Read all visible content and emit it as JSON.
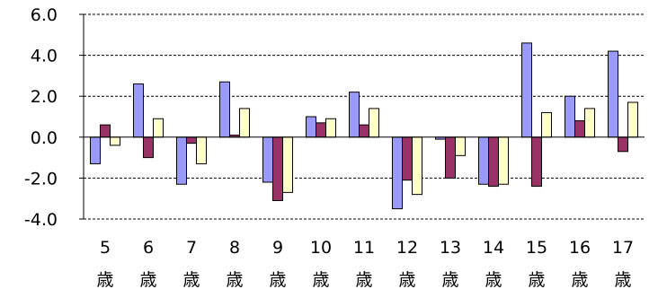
{
  "chart_data": {
    "type": "bar",
    "title": "",
    "xlabel": "",
    "ylabel": "",
    "ylim": [
      -4.0,
      6.0
    ],
    "yticks": [
      "6.0",
      "4.0",
      "2.0",
      "0.0",
      "-2.0",
      "-4.0"
    ],
    "grid": true,
    "legend": "none",
    "categories": [
      {
        "num": "5",
        "unit": "歳"
      },
      {
        "num": "6",
        "unit": "歳"
      },
      {
        "num": "7",
        "unit": "歳"
      },
      {
        "num": "8",
        "unit": "歳"
      },
      {
        "num": "9",
        "unit": "歳"
      },
      {
        "num": "10",
        "unit": "歳"
      },
      {
        "num": "11",
        "unit": "歳"
      },
      {
        "num": "12",
        "unit": "歳"
      },
      {
        "num": "13",
        "unit": "歳"
      },
      {
        "num": "14",
        "unit": "歳"
      },
      {
        "num": "15",
        "unit": "歳"
      },
      {
        "num": "16",
        "unit": "歳"
      },
      {
        "num": "17",
        "unit": "歳"
      }
    ],
    "series": [
      {
        "color": "#9999FF",
        "values": [
          -1.3,
          2.6,
          -2.3,
          2.7,
          -2.2,
          1.0,
          2.2,
          -3.5,
          -0.1,
          -2.3,
          4.6,
          2.0,
          4.2
        ]
      },
      {
        "color": "#993366",
        "values": [
          0.6,
          -1.0,
          -0.3,
          0.1,
          -3.1,
          0.7,
          0.6,
          -2.1,
          -2.0,
          -2.4,
          -2.4,
          0.8,
          -0.7
        ]
      },
      {
        "color": "#FFFFCC",
        "values": [
          -0.4,
          0.9,
          -1.3,
          1.4,
          -2.7,
          0.9,
          1.4,
          -2.8,
          -0.9,
          -2.3,
          1.2,
          1.4,
          1.7
        ]
      }
    ]
  }
}
